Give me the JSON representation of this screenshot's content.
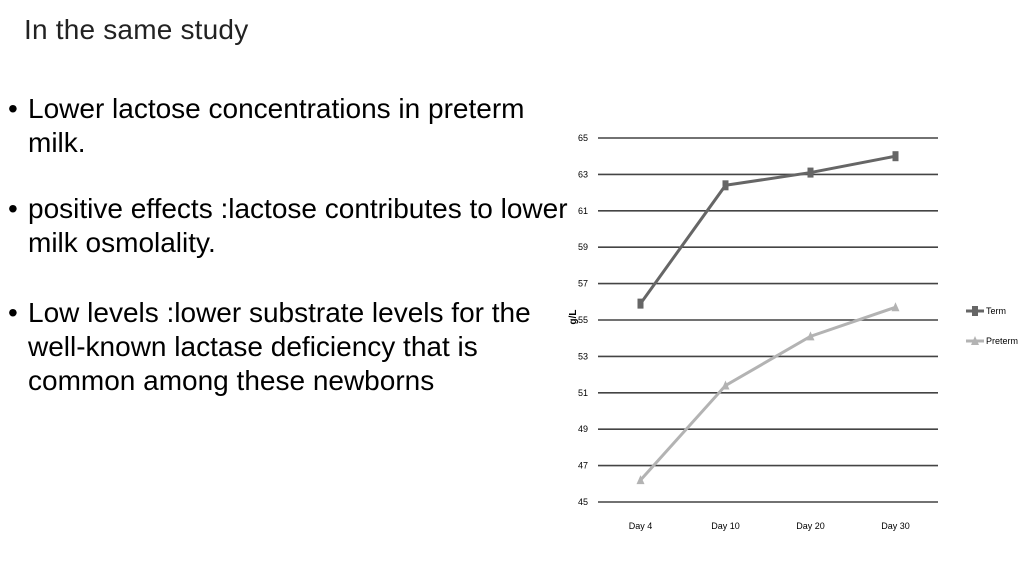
{
  "slide": {
    "title": "In the same study",
    "bullets": [
      "Lower lactose concentrations  in preterm milk.",
      "positive effects :lactose contributes to lower milk osmolality.",
      "Low levels :lower substrate levels for the well-known lactase deficiency that is common among these newborns"
    ]
  },
  "chart_data": {
    "type": "line",
    "categories": [
      "Day 4",
      "Day 10",
      "Day 20",
      "Day 30"
    ],
    "series": [
      {
        "name": "Term",
        "values": [
          55.9,
          62.4,
          63.1,
          64.0
        ],
        "color": "#666666",
        "marker": "square"
      },
      {
        "name": "Preterm",
        "values": [
          46.2,
          51.4,
          54.1,
          55.7
        ],
        "color": "#b3b3b3",
        "marker": "triangle"
      }
    ],
    "yticks": [
      45,
      47,
      49,
      51,
      53,
      55,
      57,
      59,
      61,
      63,
      65
    ],
    "ylim": [
      45,
      65
    ],
    "ylabel": "g/L",
    "xlabel": "",
    "grid": true,
    "legend_position": "right"
  }
}
